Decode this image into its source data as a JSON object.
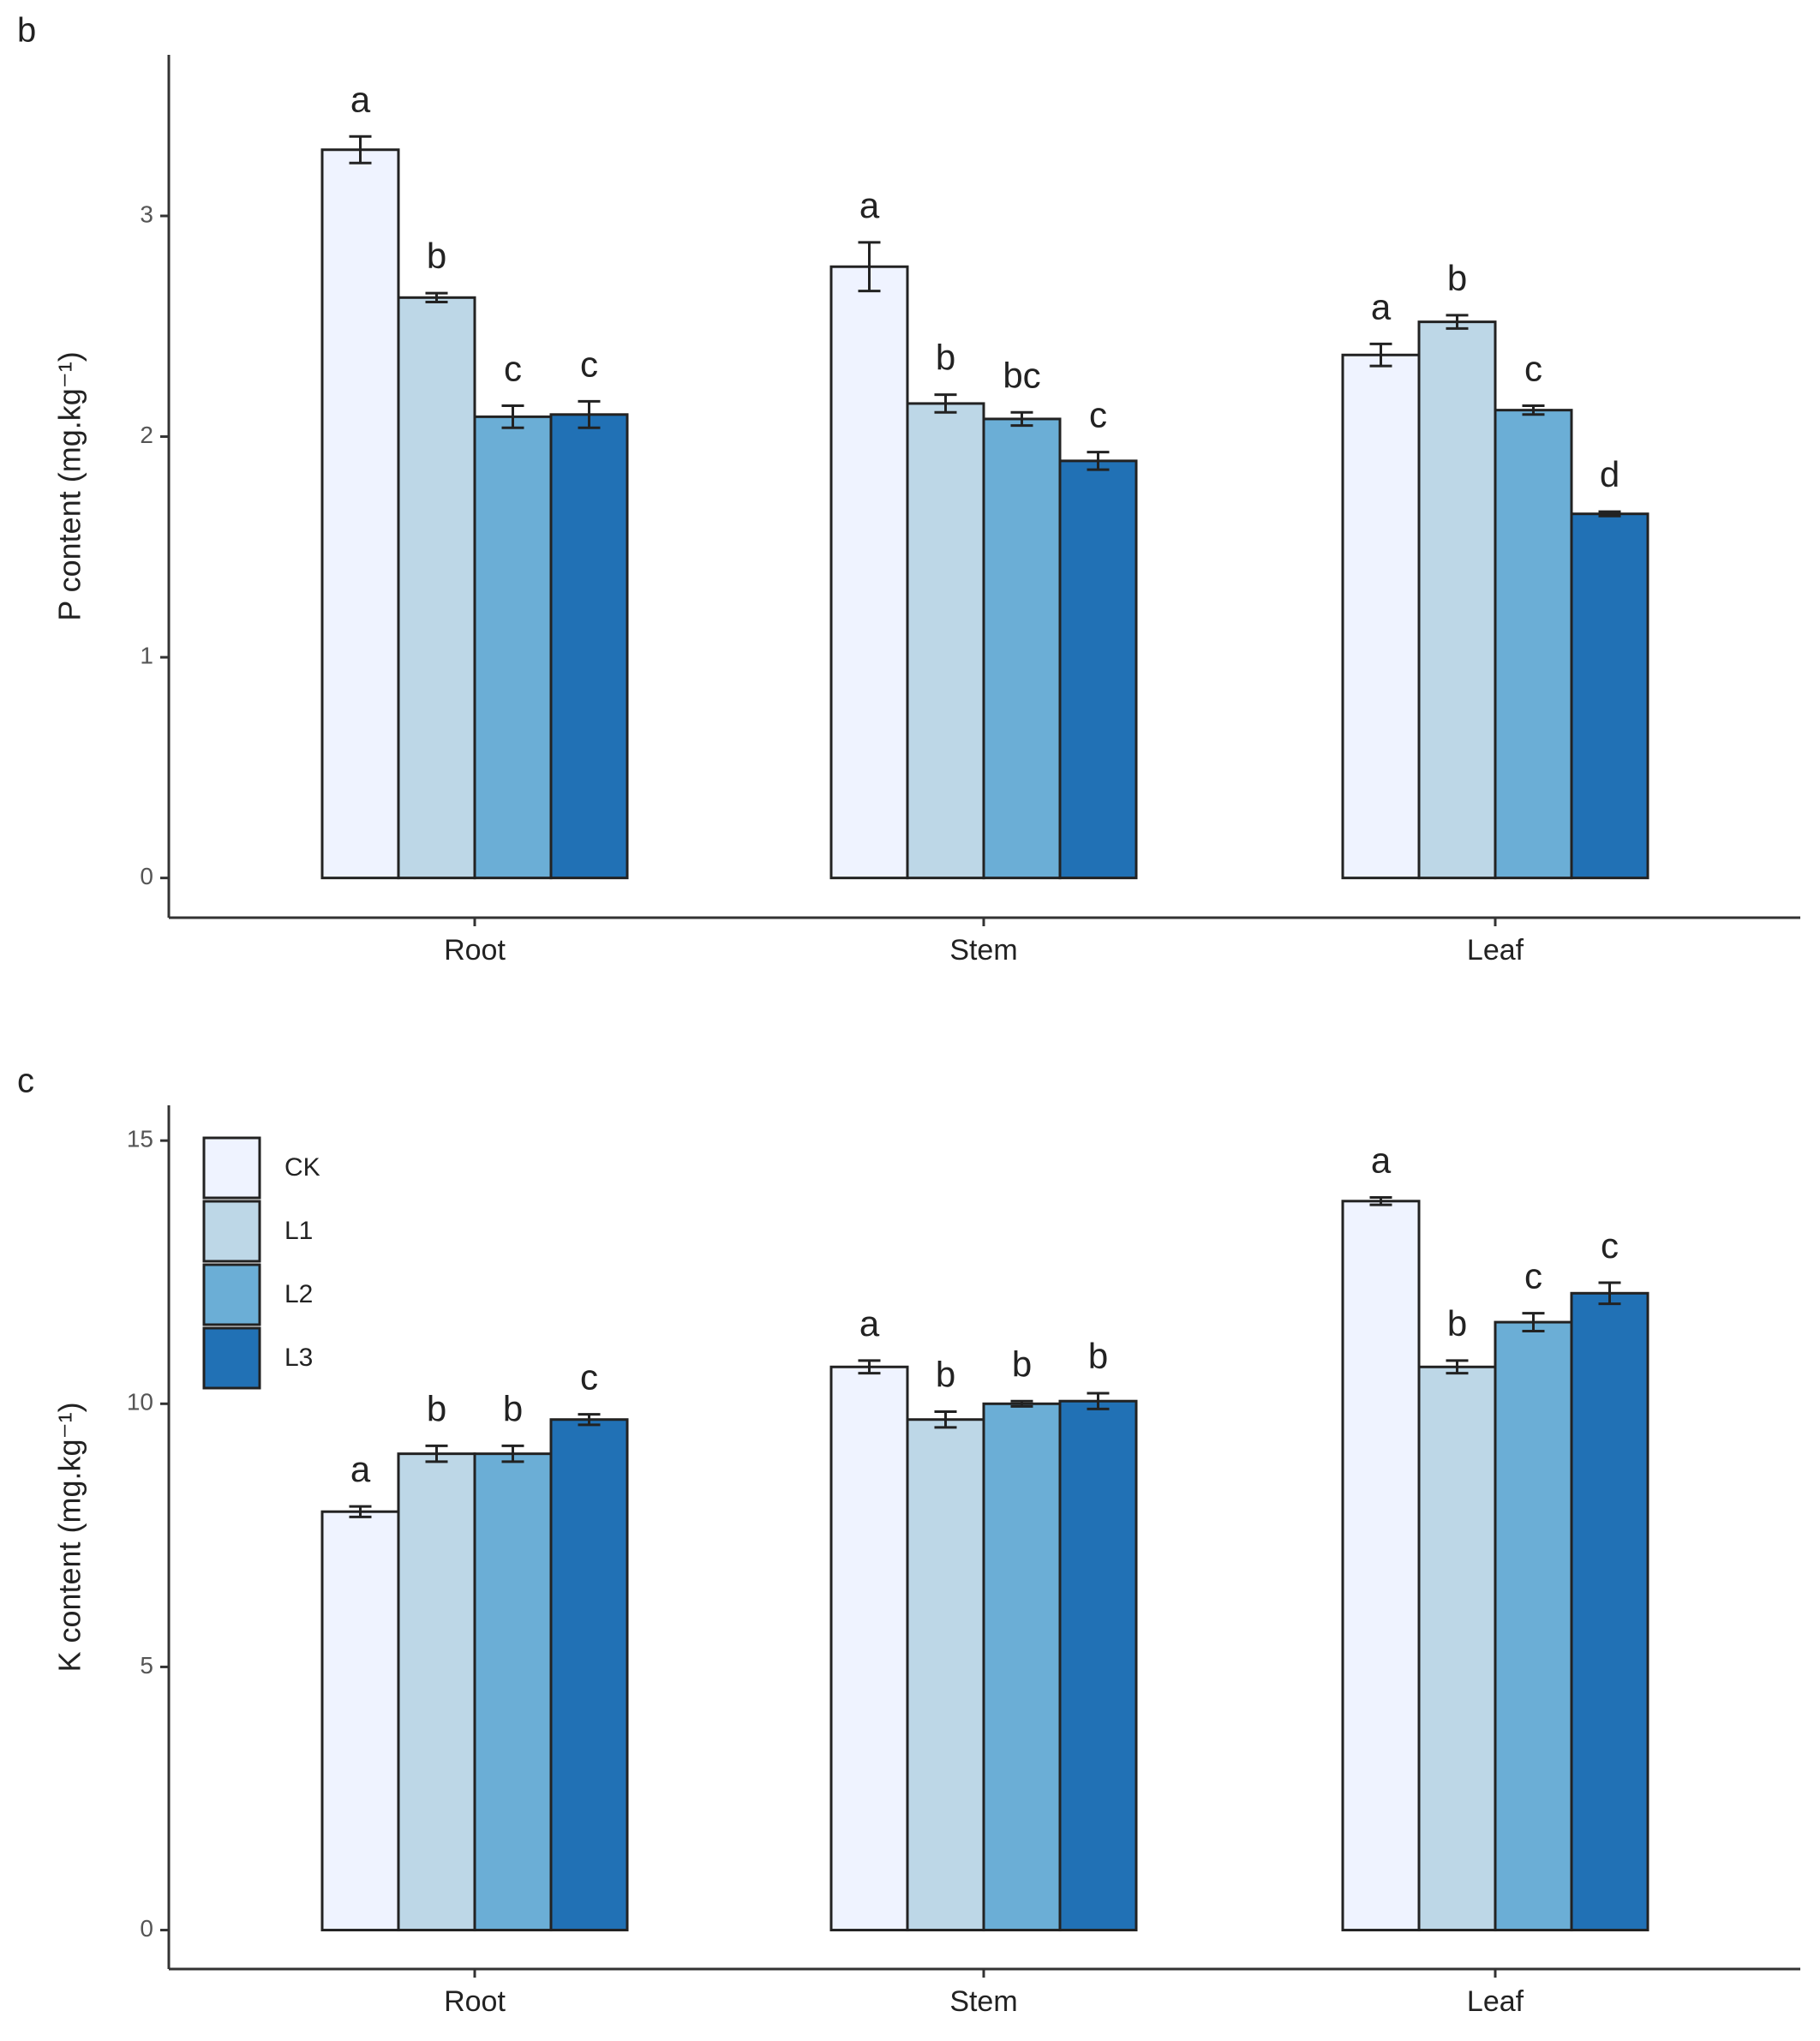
{
  "chart_data": [
    {
      "type": "bar",
      "panel_label": "b",
      "y_label": "P content (mg.kg⁻¹)",
      "categories": [
        "Root",
        "Stem",
        "Leaf"
      ],
      "ylim": [
        -0.18,
        3.73
      ],
      "yticks": [
        0,
        1,
        2,
        3
      ],
      "legend": "none",
      "series": [
        {
          "name": "CK",
          "color": "#eff3ff",
          "values": [
            3.3,
            2.77,
            2.37
          ],
          "errors": [
            0.06,
            0.11,
            0.05
          ],
          "letters": [
            "a",
            "a",
            "a"
          ]
        },
        {
          "name": "L1",
          "color": "#bdd7e7",
          "values": [
            2.63,
            2.15,
            2.52
          ],
          "errors": [
            0.02,
            0.04,
            0.03
          ],
          "letters": [
            "b",
            "b",
            "b"
          ]
        },
        {
          "name": "L2",
          "color": "#6baed6",
          "values": [
            2.09,
            2.08,
            2.12
          ],
          "errors": [
            0.05,
            0.03,
            0.02
          ],
          "letters": [
            "c",
            "bc",
            "c"
          ]
        },
        {
          "name": "L3",
          "color": "#2171b5",
          "values": [
            2.1,
            1.89,
            1.65
          ],
          "errors": [
            0.06,
            0.04,
            0.01
          ],
          "letters": [
            "c",
            "c",
            "d"
          ]
        }
      ]
    },
    {
      "type": "bar",
      "panel_label": "c",
      "y_label": "K content (mg.kg⁻¹)",
      "categories": [
        "Root",
        "Stem",
        "Leaf"
      ],
      "ylim": [
        -0.74,
        15.67
      ],
      "yticks": [
        0,
        5,
        10,
        15
      ],
      "legend": "top-left",
      "series": [
        {
          "name": "CK",
          "color": "#eff3ff",
          "values": [
            7.95,
            10.7,
            13.85
          ],
          "errors": [
            0.1,
            0.12,
            0.07
          ],
          "letters": [
            "a",
            "a",
            "a"
          ]
        },
        {
          "name": "L1",
          "color": "#bdd7e7",
          "values": [
            9.05,
            9.7,
            10.7
          ],
          "errors": [
            0.15,
            0.15,
            0.12
          ],
          "letters": [
            "b",
            "b",
            "b"
          ]
        },
        {
          "name": "L2",
          "color": "#6baed6",
          "values": [
            9.05,
            10.0,
            11.55
          ],
          "errors": [
            0.15,
            0.05,
            0.17
          ],
          "letters": [
            "b",
            "b",
            "c"
          ]
        },
        {
          "name": "L3",
          "color": "#2171b5",
          "values": [
            9.7,
            10.05,
            12.1
          ],
          "errors": [
            0.1,
            0.15,
            0.2
          ],
          "letters": [
            "c",
            "b",
            "c"
          ]
        }
      ]
    }
  ]
}
